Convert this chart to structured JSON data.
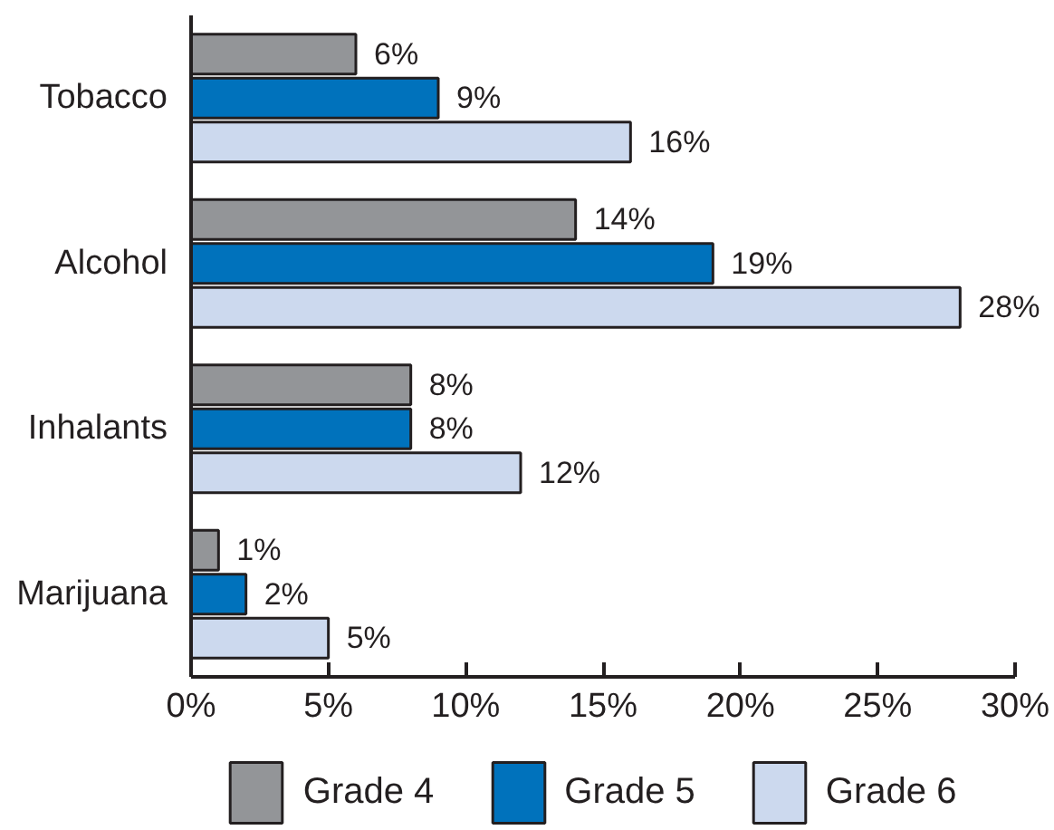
{
  "chart_data": {
    "type": "bar",
    "orientation": "horizontal",
    "categories": [
      "Tobacco",
      "Alcohol",
      "Inhalants",
      "Marijuana"
    ],
    "series": [
      {
        "name": "Grade 4",
        "color": "#939598",
        "values": [
          6,
          14,
          8,
          1
        ],
        "value_labels": [
          "6%",
          "14%",
          "8%",
          "1%"
        ]
      },
      {
        "name": "Grade 5",
        "color": "#0072bc",
        "values": [
          9,
          19,
          8,
          2
        ],
        "value_labels": [
          "9%",
          "19%",
          "8%",
          "2%"
        ]
      },
      {
        "name": "Grade 6",
        "color": "#ccd9ee",
        "values": [
          16,
          28,
          12,
          5
        ],
        "value_labels": [
          "16%",
          "28%",
          "12%",
          "5%"
        ]
      }
    ],
    "xlim": [
      0,
      30
    ],
    "xticks": [
      {
        "value": 0,
        "label": "0%"
      },
      {
        "value": 5,
        "label": "5%"
      },
      {
        "value": 10,
        "label": "10%"
      },
      {
        "value": 15,
        "label": "15%"
      },
      {
        "value": 20,
        "label": "20%"
      },
      {
        "value": 25,
        "label": "25%"
      },
      {
        "value": 30,
        "label": "30%"
      }
    ],
    "legend": "bottom"
  }
}
